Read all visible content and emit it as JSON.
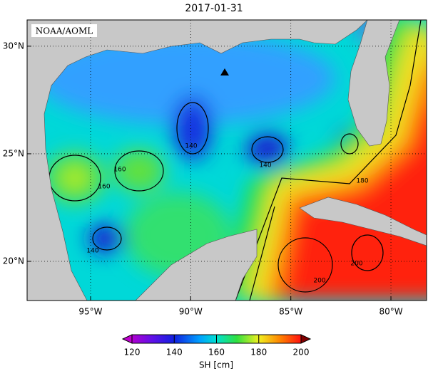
{
  "map": {
    "title": "2017-01-31",
    "credit": "NOAA/AOML",
    "xlim": [
      -98.17,
      -78.22
    ],
    "ylim": [
      18.18,
      31.22
    ],
    "lat_ticks": [
      {
        "value": 20,
        "label": "20°N"
      },
      {
        "value": 25,
        "label": "25°N"
      },
      {
        "value": 30,
        "label": "30°N"
      }
    ],
    "lon_ticks": [
      {
        "value": -95,
        "label": "95°W"
      },
      {
        "value": -90,
        "label": "90°W"
      },
      {
        "value": -85,
        "label": "85°W"
      },
      {
        "value": -80,
        "label": "80°W"
      }
    ],
    "contour_labels": [
      160,
      160,
      140,
      140,
      140,
      180,
      200,
      200
    ],
    "colorbar": {
      "label": "SH [cm]",
      "range": [
        120,
        200
      ],
      "ticks": [
        120,
        140,
        160,
        180,
        200
      ]
    }
  }
}
